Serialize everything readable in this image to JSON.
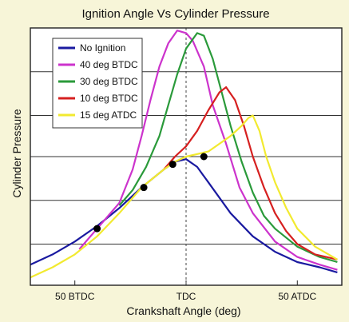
{
  "chart_data": {
    "type": "line",
    "title": "Ignition Angle Vs Cylinder Pressure",
    "xlabel": "Crankshaft Angle (deg)",
    "ylabel": "Cylinder Pressure",
    "xlim": [
      -70,
      70
    ],
    "ylim": [
      0,
      100
    ],
    "x_ticks": [
      {
        "value": -50,
        "label": "50 BTDC"
      },
      {
        "value": 0,
        "label": "TDC"
      },
      {
        "value": 50,
        "label": "50 ATDC"
      }
    ],
    "grid": true,
    "legend_position": "top-left",
    "series": [
      {
        "name": "No Ignition",
        "color": "#1a1aa0",
        "points": [
          [
            -70,
            8
          ],
          [
            -60,
            12
          ],
          [
            -50,
            17
          ],
          [
            -40,
            23
          ],
          [
            -30,
            30
          ],
          [
            -20,
            38
          ],
          [
            -10,
            45
          ],
          [
            -5,
            48
          ],
          [
            0,
            49
          ],
          [
            5,
            46
          ],
          [
            10,
            40
          ],
          [
            20,
            28
          ],
          [
            30,
            19
          ],
          [
            40,
            13
          ],
          [
            50,
            9
          ],
          [
            60,
            7
          ],
          [
            68,
            5
          ]
        ]
      },
      {
        "name": "40 deg BTDC",
        "color": "#cc33cc",
        "points": [
          [
            -48,
            14
          ],
          [
            -40,
            22
          ],
          [
            -30,
            32
          ],
          [
            -24,
            45
          ],
          [
            -20,
            58
          ],
          [
            -16,
            72
          ],
          [
            -12,
            85
          ],
          [
            -8,
            94
          ],
          [
            -4,
            99
          ],
          [
            0,
            98
          ],
          [
            3,
            95
          ],
          [
            8,
            85
          ],
          [
            12,
            70
          ],
          [
            18,
            55
          ],
          [
            24,
            38
          ],
          [
            30,
            28
          ],
          [
            40,
            17
          ],
          [
            50,
            11
          ],
          [
            60,
            8
          ],
          [
            68,
            6
          ]
        ]
      },
      {
        "name": "30 deg BTDC",
        "color": "#2a9a3a",
        "points": [
          [
            -30,
            31
          ],
          [
            -24,
            37
          ],
          [
            -18,
            46
          ],
          [
            -12,
            58
          ],
          [
            -8,
            70
          ],
          [
            -4,
            82
          ],
          [
            0,
            92
          ],
          [
            5,
            98
          ],
          [
            8,
            97
          ],
          [
            12,
            88
          ],
          [
            16,
            75
          ],
          [
            20,
            62
          ],
          [
            25,
            48
          ],
          [
            30,
            36
          ],
          [
            35,
            27
          ],
          [
            40,
            22
          ],
          [
            50,
            15
          ],
          [
            60,
            11
          ],
          [
            68,
            9
          ]
        ]
      },
      {
        "name": "10 deg BTDC",
        "color": "#d62020",
        "points": [
          [
            -10,
            45
          ],
          [
            -5,
            50
          ],
          [
            0,
            54
          ],
          [
            5,
            60
          ],
          [
            10,
            68
          ],
          [
            15,
            75
          ],
          [
            18,
            77
          ],
          [
            22,
            72
          ],
          [
            26,
            62
          ],
          [
            30,
            50
          ],
          [
            35,
            38
          ],
          [
            40,
            28
          ],
          [
            45,
            21
          ],
          [
            50,
            16
          ],
          [
            58,
            12
          ],
          [
            68,
            10
          ]
        ]
      },
      {
        "name": "15 deg ATDC",
        "color": "#f2ea30",
        "points": [
          [
            -70,
            3
          ],
          [
            -60,
            7
          ],
          [
            -50,
            12
          ],
          [
            -40,
            19
          ],
          [
            -30,
            28
          ],
          [
            -20,
            38
          ],
          [
            -10,
            45
          ],
          [
            -5,
            48
          ],
          [
            0,
            50
          ],
          [
            10,
            52
          ],
          [
            20,
            58
          ],
          [
            25,
            62
          ],
          [
            28,
            65
          ],
          [
            30,
            66
          ],
          [
            33,
            60
          ],
          [
            36,
            50
          ],
          [
            40,
            40
          ],
          [
            45,
            30
          ],
          [
            50,
            22
          ],
          [
            58,
            15
          ],
          [
            68,
            10
          ]
        ]
      }
    ],
    "markers": [
      [
        -40,
        22
      ],
      [
        -19,
        38
      ],
      [
        -6,
        47
      ],
      [
        8,
        50
      ]
    ]
  }
}
